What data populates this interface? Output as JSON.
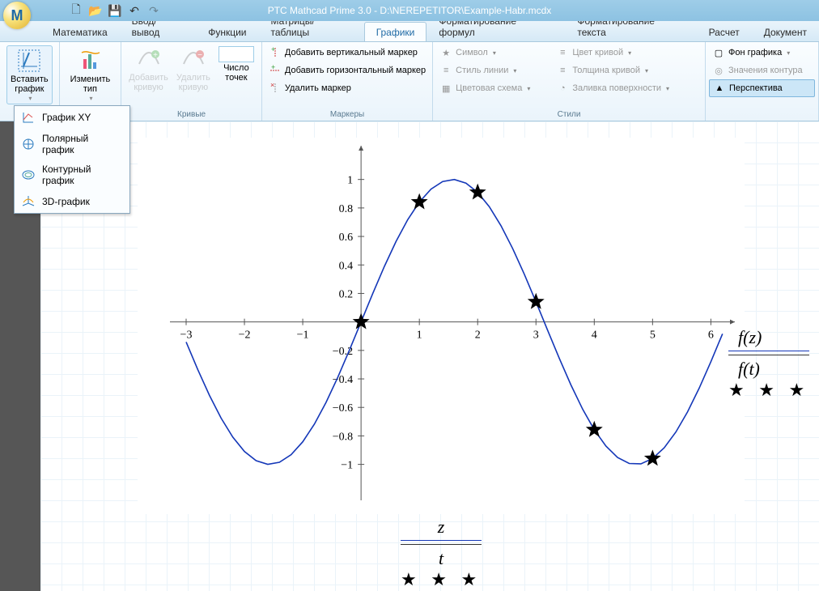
{
  "app": {
    "title": "PTC Mathcad Prime 3.0 - D:\\NEREPETITOR\\Example-Habr.mcdx",
    "logo_letter": "M"
  },
  "qat": {
    "new": "🗋",
    "open": "📂",
    "save": "💾",
    "undo": "↶",
    "redo": "↷"
  },
  "tabs": {
    "items": [
      "Математика",
      "Ввод/вывод",
      "Функции",
      "Матрицы/таблицы",
      "Графики",
      "Форматирование формул",
      "Форматирование текста",
      "Расчет",
      "Документ"
    ],
    "active_index": 4
  },
  "ribbon": {
    "insert_plot": {
      "label": "Вставить\nграфик"
    },
    "change_type": {
      "label": "Изменить\nтип"
    },
    "add_curve": {
      "label": "Добавить\nкривую"
    },
    "delete_curve": {
      "label": "Удалить\nкривую"
    },
    "num_points": {
      "label": "Число\nточек"
    },
    "curves_caption": "Кривые",
    "markers": {
      "add_v": "Добавить вертикальный маркер",
      "add_h": "Добавить горизонтальный маркер",
      "delete": "Удалить маркер",
      "caption": "Маркеры"
    },
    "styles": {
      "symbol": "Символ",
      "line_style": "Стиль линии",
      "color_scheme": "Цветовая схема",
      "curve_color": "Цвет кривой",
      "line_thickness": "Толщина кривой",
      "surface_fill": "Заливка поверхности",
      "caption": "Стили"
    },
    "plot_group": {
      "background": "Фон графика",
      "contour_values": "Значения контура",
      "perspective": "Перспектива"
    }
  },
  "dropdown": {
    "items": [
      "График XY",
      "Полярный график",
      "Контурный график",
      "3D-график"
    ]
  },
  "chart": {
    "type": "line_with_markers",
    "x_axis": {
      "min": -3,
      "max": 6.3,
      "ticks": [
        -3,
        -2,
        -1,
        0,
        1,
        2,
        3,
        4,
        5,
        6
      ]
    },
    "y_axis": {
      "min": -1.15,
      "max": 1.18,
      "ticks": [
        -1,
        -0.8,
        -0.6,
        -0.4,
        -0.2,
        0.2,
        0.4,
        0.6,
        0.8,
        1
      ]
    },
    "curve_color": "#1437b8",
    "axis_color": "#555555",
    "tick_fontsize": 14,
    "line": {
      "formula": "sin(x)",
      "sample_x": [
        -3,
        -2.8,
        -2.6,
        -2.4,
        -2.2,
        -2,
        -1.8,
        -1.6,
        -1.4,
        -1.2,
        -1,
        -0.8,
        -0.6,
        -0.4,
        -0.2,
        0,
        0.2,
        0.4,
        0.6,
        0.8,
        1,
        1.2,
        1.4,
        1.6,
        1.8,
        2,
        2.2,
        2.4,
        2.6,
        2.8,
        3,
        3.2,
        3.4,
        3.6,
        3.8,
        4,
        4.2,
        4.4,
        4.6,
        4.8,
        5,
        5.2,
        5.4,
        5.6,
        5.8,
        6,
        6.2
      ]
    },
    "markers": {
      "shape": "star",
      "color": "#000000",
      "size": 11,
      "points": [
        {
          "x": 0,
          "y": 0
        },
        {
          "x": 1,
          "y": 0.8415
        },
        {
          "x": 2,
          "y": 0.9093
        },
        {
          "x": 3,
          "y": 0.1411
        },
        {
          "x": 4,
          "y": -0.7568
        },
        {
          "x": 5,
          "y": -0.9589
        }
      ]
    },
    "legend_labels": {
      "top": "f(z)",
      "bottom": "f(t)"
    },
    "x_labels": {
      "top": "z",
      "bottom": "t"
    }
  }
}
